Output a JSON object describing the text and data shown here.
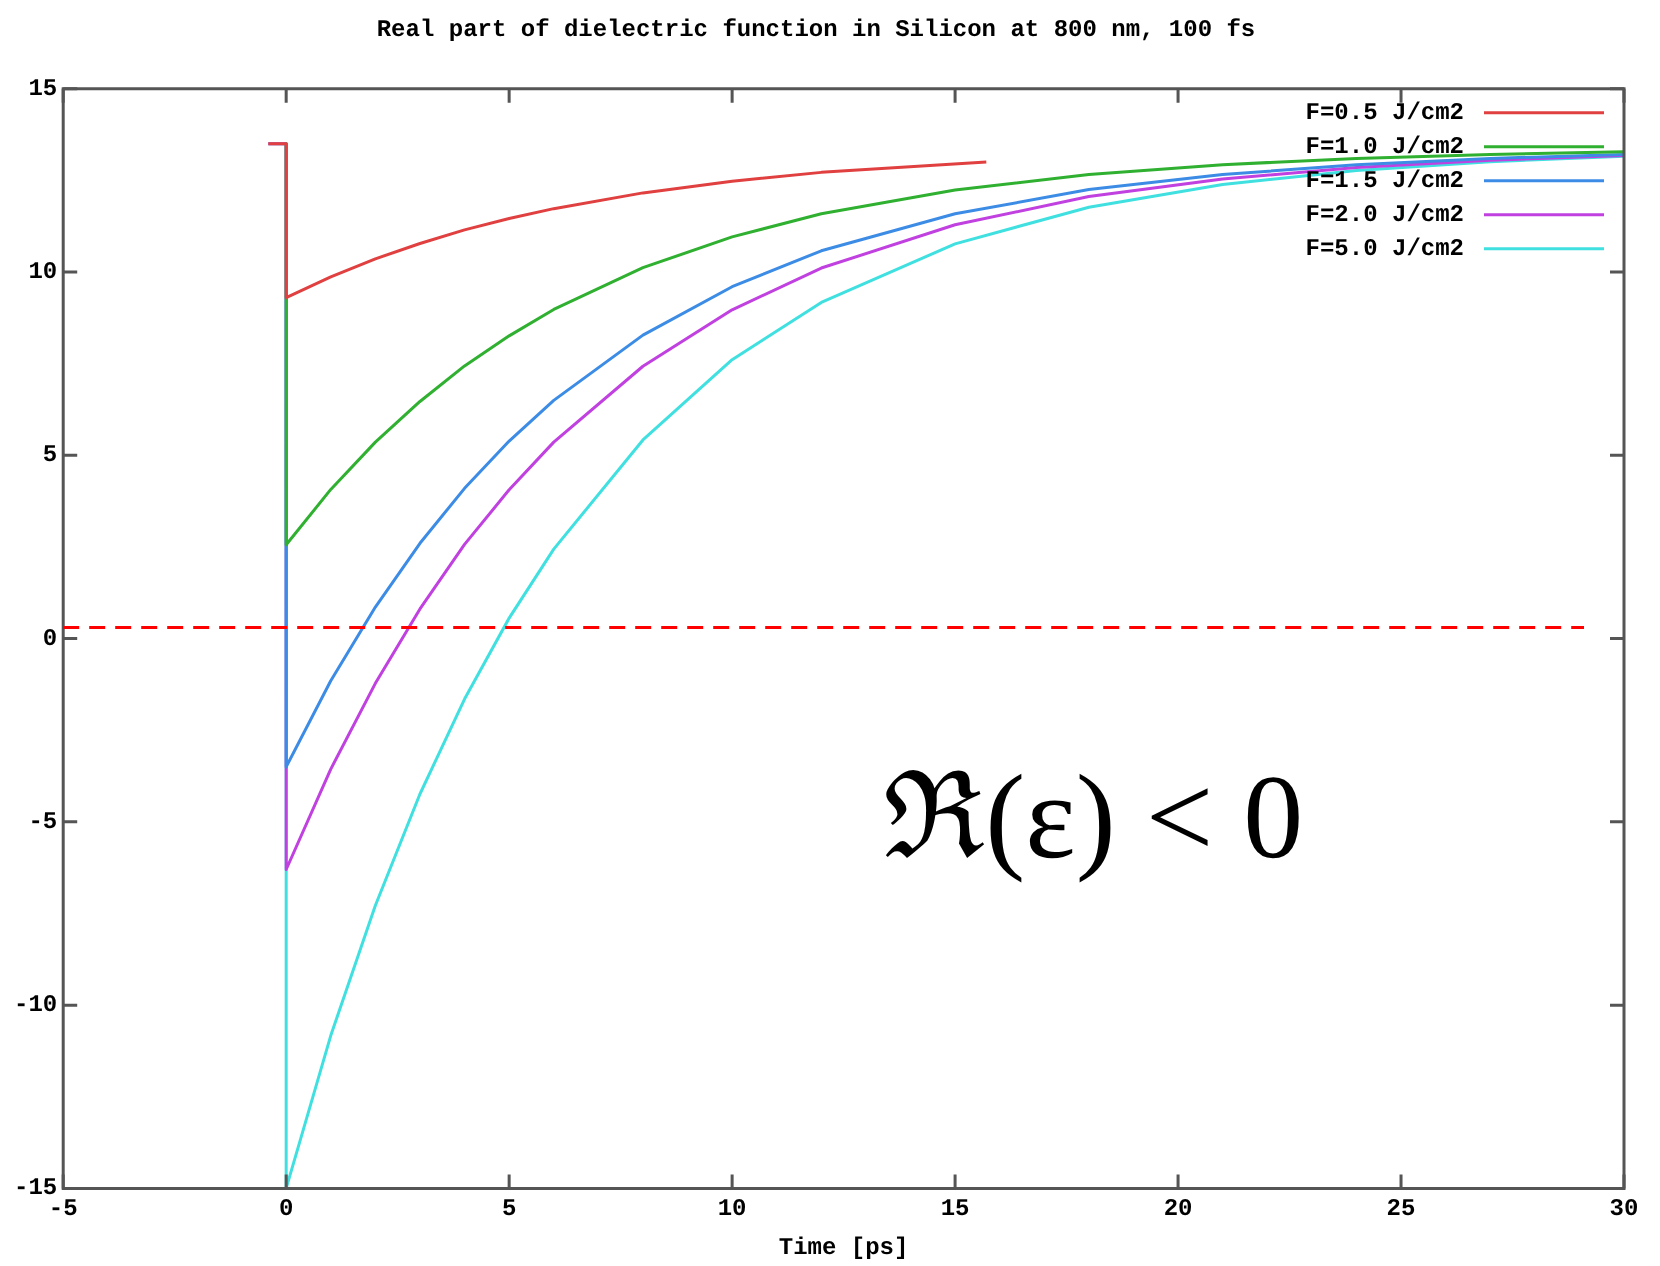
{
  "chart_data": {
    "type": "line",
    "title": "Real part of dielectric function in Silicon at 800 nm, 100 fs",
    "xlabel": "Time [ps]",
    "xlim": [
      -5,
      30
    ],
    "xticks": [
      -5,
      0,
      5,
      10,
      15,
      20,
      25,
      30
    ],
    "ylim": [
      -15,
      15
    ],
    "yticks": [
      -15,
      -10,
      -5,
      0,
      5,
      10,
      15
    ],
    "grid": false,
    "legend": "top right",
    "marker": "none",
    "line_style": "solid",
    "ref_lines": [
      {
        "axis": "y",
        "value": 0.3,
        "color": "#ff0000",
        "line_style": "dashed"
      }
    ],
    "annotations": [
      "ℜ(ε) < 0"
    ],
    "series": [
      {
        "name": "F=0.5 J/cm2",
        "color": "#e04040",
        "x": [
          -0.4,
          0,
          0,
          1,
          2,
          3,
          4,
          5,
          6,
          8,
          10,
          12,
          15.7
        ],
        "values": [
          13.5,
          13.5,
          9.3,
          9.87,
          10.36,
          10.78,
          11.15,
          11.46,
          11.73,
          12.16,
          12.48,
          12.72,
          13.0
        ]
      },
      {
        "name": "F=1.0 J/cm2",
        "color": "#30b030",
        "x": [
          0,
          0,
          1,
          2,
          3,
          4,
          5,
          6,
          8,
          10,
          12,
          15,
          18,
          21,
          24,
          27,
          30
        ],
        "values": [
          13.5,
          2.56,
          4.07,
          5.36,
          6.47,
          7.44,
          8.26,
          8.98,
          10.12,
          10.96,
          11.59,
          12.24,
          12.66,
          12.93,
          13.1,
          13.21,
          13.28
        ]
      },
      {
        "name": "F=1.5 J/cm2",
        "color": "#3c8ce6",
        "x": [
          0,
          0,
          1,
          2,
          3,
          4,
          5,
          6,
          8,
          10,
          12,
          15,
          18,
          21,
          24,
          27,
          30
        ],
        "values": [
          13.5,
          -3.5,
          -1.15,
          0.86,
          2.6,
          4.1,
          5.39,
          6.5,
          8.28,
          9.6,
          10.58,
          11.59,
          12.25,
          12.66,
          12.93,
          13.1,
          13.21
        ]
      },
      {
        "name": "F=2.0 J/cm2",
        "color": "#c040e0",
        "x": [
          -0.4,
          0,
          0,
          1,
          2,
          3,
          4,
          5,
          6,
          8,
          10,
          12,
          15,
          18,
          21,
          24,
          27,
          30
        ],
        "values": [
          13.5,
          13.5,
          -6.3,
          -3.56,
          -1.22,
          0.81,
          2.57,
          4.06,
          5.36,
          7.43,
          8.97,
          10.11,
          11.29,
          12.06,
          12.54,
          12.85,
          13.05,
          13.18
        ]
      },
      {
        "name": "F=5.0 J/cm2",
        "color": "#40e0e0",
        "x": [
          -0.4,
          0,
          0,
          1,
          2,
          3,
          4,
          5,
          6,
          8,
          10,
          12,
          15,
          18,
          21,
          24,
          27,
          30
        ],
        "values": [
          13.5,
          13.5,
          -15,
          -10.83,
          -7.28,
          -4.24,
          -1.65,
          0.56,
          2.44,
          5.42,
          7.61,
          9.17,
          10.77,
          11.77,
          12.39,
          12.77,
          13.01,
          13.16
        ]
      }
    ]
  }
}
